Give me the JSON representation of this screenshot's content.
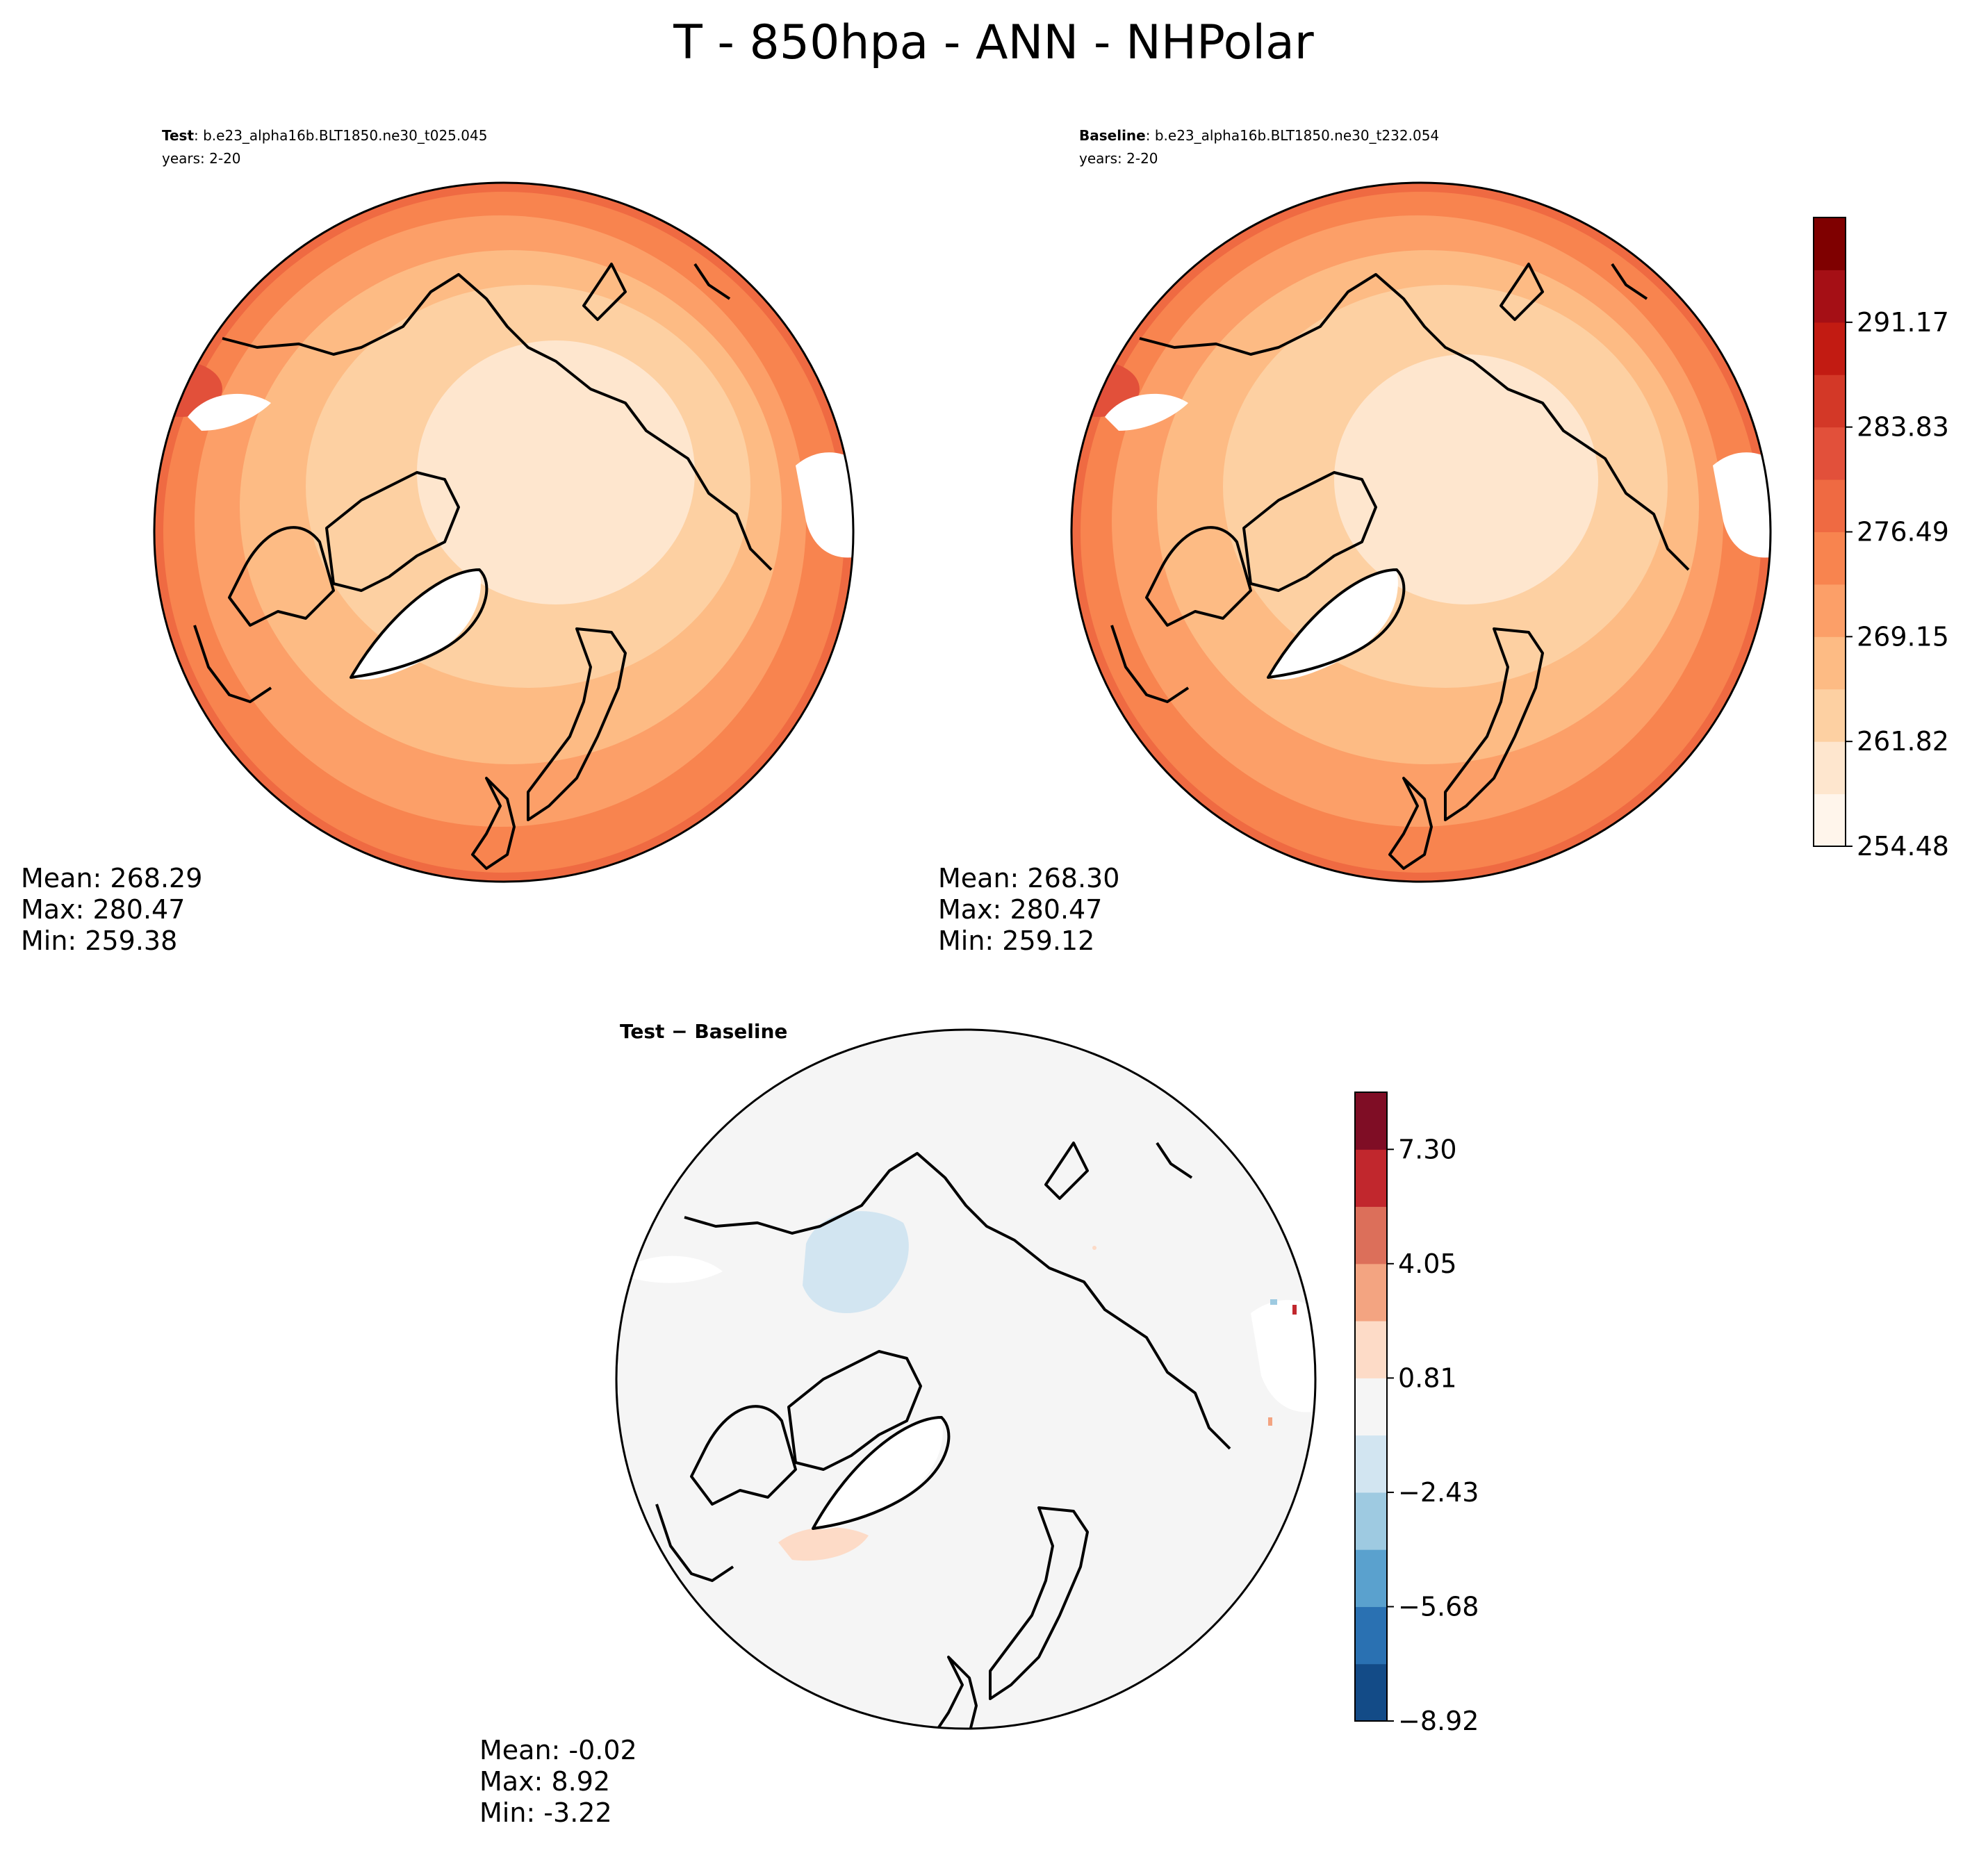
{
  "title": "T - 850hpa - ANN - NHPolar",
  "panels": {
    "test": {
      "label": "Test",
      "case": ": b.e23_alpha16b.BLT1850.ne30_t025.045",
      "years": "years: 2-20",
      "mean": "Mean: 268.29",
      "max": "Max: 280.47",
      "min": "Min: 259.38"
    },
    "baseline": {
      "label": "Baseline",
      "case": ": b.e23_alpha16b.BLT1850.ne30_t232.054",
      "years": "years: 2-20",
      "mean": "Mean: 268.30",
      "max": "Max: 280.47",
      "min": "Min: 259.12"
    },
    "diff": {
      "title": "Test − Baseline",
      "mean": "Mean: -0.02",
      "max": "Max:  8.92",
      "min": "Min: -3.22"
    }
  },
  "chart_data": [
    {
      "type": "heatmap",
      "name": "Test",
      "projection": "north-polar-stereographic",
      "stats": {
        "mean": 268.29,
        "max": 280.47,
        "min": 259.38
      }
    },
    {
      "type": "heatmap",
      "name": "Baseline",
      "projection": "north-polar-stereographic",
      "stats": {
        "mean": 268.3,
        "max": 280.47,
        "min": 259.12
      }
    },
    {
      "type": "heatmap",
      "name": "Test − Baseline",
      "projection": "north-polar-stereographic",
      "stats": {
        "mean": -0.02,
        "max": 8.92,
        "min": -3.22
      }
    }
  ],
  "colorbars": {
    "main": {
      "range": [
        254.48,
        295.0
      ],
      "ticks": [
        "254.48",
        "261.82",
        "269.15",
        "276.49",
        "283.83",
        "291.17"
      ],
      "colors": [
        "#fff5eb",
        "#fee6ce",
        "#fdd0a2",
        "#fdbb84",
        "#fc9f68",
        "#f8844f",
        "#ef6a42",
        "#e2503a",
        "#d33827",
        "#c21b12",
        "#a50f15",
        "#7f0000"
      ]
    },
    "diff": {
      "range": [
        -8.92,
        8.92
      ],
      "ticks": [
        "−8.92",
        "−5.68",
        "−2.43",
        "0.81",
        "4.05",
        "7.30"
      ],
      "colors": [
        "#134b87",
        "#2a71b2",
        "#5aa1ce",
        "#9ecae1",
        "#d2e5f1",
        "#f5f5f5",
        "#fddbc7",
        "#f3a481",
        "#dc6f5a",
        "#c1272d",
        "#7f0d25"
      ]
    }
  }
}
